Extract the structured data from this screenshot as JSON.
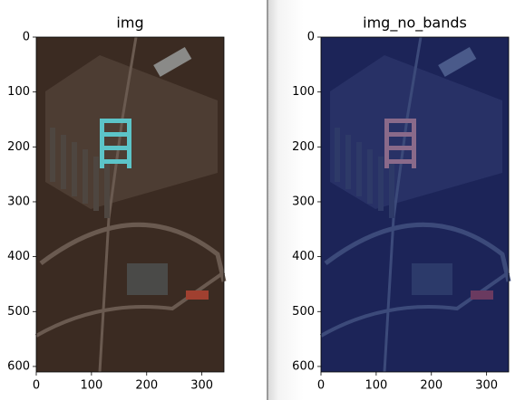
{
  "chart_data": [
    {
      "type": "image",
      "title": "img",
      "xlim": [
        0,
        340
      ],
      "ylim": [
        610,
        0
      ],
      "xticks": [
        0,
        100,
        200,
        300
      ],
      "yticks": [
        0,
        100,
        200,
        300,
        400,
        500,
        600
      ],
      "color": "#3b2b22"
    },
    {
      "type": "image",
      "title": "img_no_bands",
      "xlim": [
        0,
        340
      ],
      "ylim": [
        610,
        0
      ],
      "xticks": [
        0,
        100,
        200,
        300
      ],
      "yticks": [
        0,
        100,
        200,
        300,
        400,
        500,
        600
      ],
      "color": "#1c2458"
    }
  ]
}
